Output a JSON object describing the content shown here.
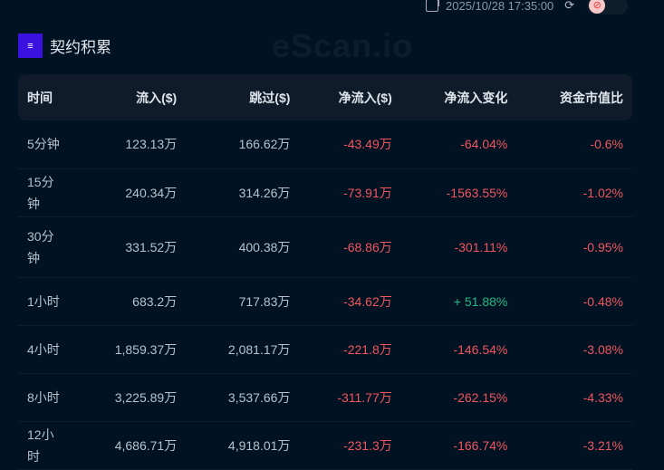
{
  "header": {
    "timestamp": "2025/10/28 17:35:00",
    "title": "契约积累",
    "watermark": "eScan.io"
  },
  "colors": {
    "negative": "#f0565e",
    "positive": "#1fb886",
    "accent": "#3a12e0"
  },
  "table": {
    "columns": [
      "时间",
      "流入($)",
      "跳过($)",
      "净流入($)",
      "净流入变化",
      "资金市值比"
    ],
    "rows": [
      [
        "5分钟",
        "123.13万",
        "166.62万",
        "-43.49万",
        "-64.04%",
        "-0.6%"
      ],
      [
        "15分钟",
        "240.34万",
        "314.26万",
        "-73.91万",
        "-1563.55%",
        "-1.02%"
      ],
      [
        "30分钟",
        "331.52万",
        "400.38万",
        "-68.86万",
        "-301.11%",
        "-0.95%"
      ],
      [
        "1小时",
        "683.2万",
        "717.83万",
        "-34.62万",
        "+ 51.88%",
        "-0.48%"
      ],
      [
        "4小时",
        "1,859.37万",
        "2,081.17万",
        "-221.8万",
        "-146.54%",
        "-3.08%"
      ],
      [
        "8小时",
        "3,225.89万",
        "3,537.66万",
        "-311.77万",
        "-262.15%",
        "-4.33%"
      ],
      [
        "12小时",
        "4,686.71万",
        "4,918.01万",
        "-231.3万",
        "-166.74%",
        "-3.21%"
      ]
    ]
  }
}
